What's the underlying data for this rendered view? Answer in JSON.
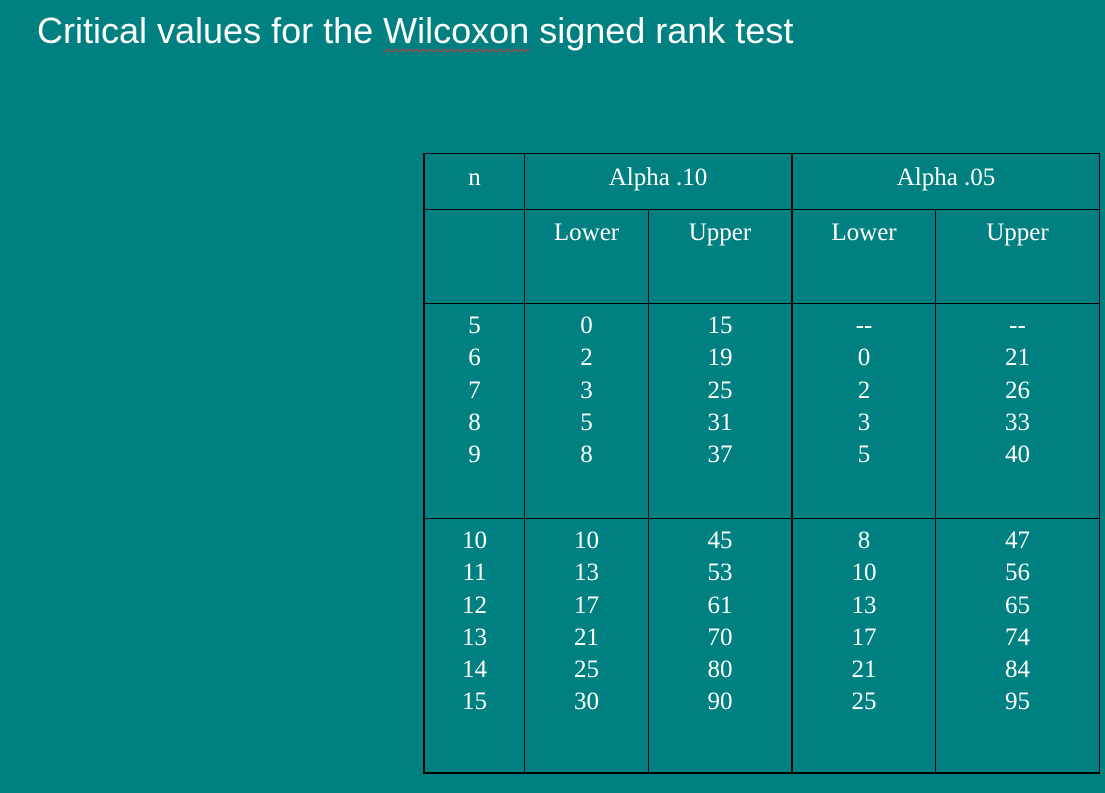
{
  "slide": {
    "title_before": "Critical values for the ",
    "title_flagged": "Wilcoxon",
    "title_after": " signed rank test"
  },
  "table": {
    "header": {
      "n": "n",
      "alpha_10": "Alpha .10",
      "alpha_05": "Alpha .05",
      "lower_10": "Lower",
      "upper_10": "Upper",
      "lower_05": "Lower",
      "upper_05": "Upper"
    },
    "groups": [
      {
        "n": [
          "5",
          "6",
          "7",
          "8",
          "9"
        ],
        "lower_10": [
          "0",
          "2",
          "3",
          "5",
          "8"
        ],
        "upper_10": [
          "15",
          "19",
          "25",
          "31",
          "37"
        ],
        "lower_05": [
          "--",
          "0",
          "2",
          "3",
          "5"
        ],
        "upper_05": [
          "--",
          "21",
          "26",
          "33",
          "40"
        ]
      },
      {
        "n": [
          "10",
          "11",
          "12",
          "13",
          "14",
          "15"
        ],
        "lower_10": [
          "10",
          "13",
          "17",
          "21",
          "25",
          "30"
        ],
        "upper_10": [
          "45",
          "53",
          "61",
          "70",
          "80",
          "90"
        ],
        "lower_05": [
          "8",
          "10",
          "13",
          "17",
          "21",
          "25"
        ],
        "upper_05": [
          "47",
          "56",
          "65",
          "74",
          "84",
          "95"
        ]
      }
    ]
  }
}
